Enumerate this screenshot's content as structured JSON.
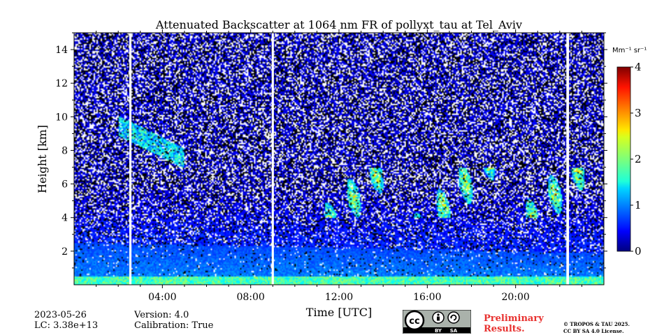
{
  "chart_data": {
    "type": "heatmap",
    "title": "Attenuated Backscatter at 1064 nm FR of pollyxt_tau at Tel_Aviv",
    "xlabel": "Time [UTC]",
    "ylabel": "Height [km]",
    "x_ticks": [
      "04:00",
      "08:00",
      "12:00",
      "16:00",
      "20:00"
    ],
    "x_tick_hours": [
      4,
      8,
      12,
      16,
      20
    ],
    "xlim_hours": [
      0,
      24
    ],
    "y_ticks": [
      "2",
      "4",
      "6",
      "8",
      "10",
      "12",
      "14"
    ],
    "y_tick_values": [
      2,
      4,
      6,
      8,
      10,
      12,
      14
    ],
    "ylim_km": [
      0,
      15
    ],
    "colorbar": {
      "unit_label": "Mm⁻¹ sr⁻¹",
      "range": [
        0,
        4
      ],
      "ticks": [
        "0",
        "1",
        "2",
        "3",
        "4"
      ],
      "tick_values": [
        0,
        1,
        2,
        3,
        4
      ],
      "colormap": "jet"
    },
    "data_gaps_hours": [
      {
        "start": 2.5,
        "end": 2.6
      },
      {
        "start": 8.95,
        "end": 9.05
      },
      {
        "start": 22.3,
        "end": 22.42
      }
    ],
    "layers": [
      {
        "kind": "surface_layer",
        "top_km": 0.5,
        "max_value": 2.2
      },
      {
        "kind": "boundary_layer",
        "top_km": 2.5,
        "max_value": 1.3
      },
      {
        "kind": "aerosol_layer",
        "top_km": 6.5,
        "max_value": 0.6
      },
      {
        "kind": "elevated_cloud",
        "x_hours": [
          2.0,
          5.0
        ],
        "y_km": [
          7.5,
          9.5
        ],
        "max_value": 2.0
      },
      {
        "kind": "cloud_patches",
        "x_hours": [
          10.5,
          24.0
        ],
        "y_km": [
          4.0,
          7.0
        ],
        "max_value": 3.0
      }
    ]
  },
  "footer": {
    "date": "2023-05-26",
    "lc": "LC: 3.38e+13",
    "version": "Version: 4.0",
    "calibration": "Calibration: True",
    "preliminary": [
      "Preliminary",
      "Results."
    ],
    "copyright": [
      "© TROPOS & TAU 2025.",
      "CC BY SA 4.0 License."
    ],
    "badge": {
      "cc": "cc",
      "by": "BY",
      "sa": "SA"
    }
  },
  "colors": {
    "background": "#ffffff",
    "preliminary_text": "#e8312f",
    "badge_bg": "#aab2ab",
    "badge_dark": "#000000"
  }
}
